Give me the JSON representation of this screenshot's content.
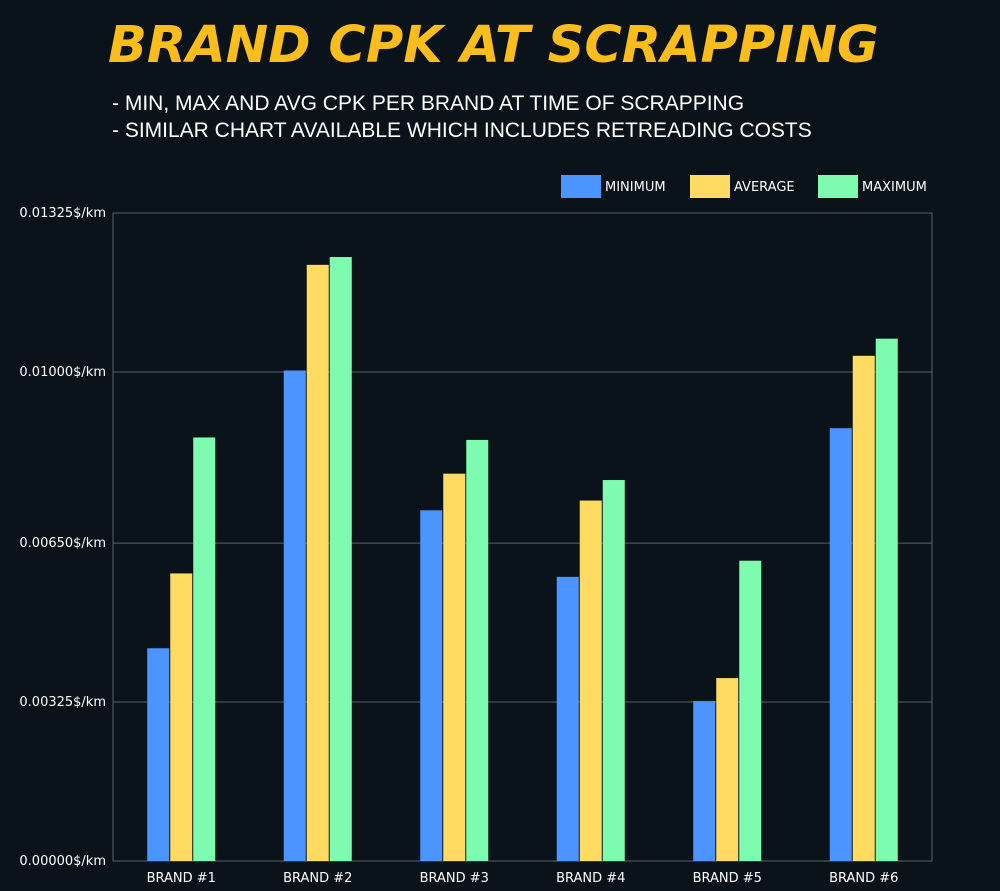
{
  "title": "BRAND CPK AT SCRAPPING",
  "subtitle_lines": [
    "- MIN, MAX AND AVG CPK PER BRAND AT TIME OF SCRAPPING",
    "- SIMILAR CHART AVAILABLE WHICH INCLUDES RETREADING COSTS"
  ],
  "colors": {
    "background": "#0a131a",
    "title": "#fbbd1b",
    "minimum": "#4c94ff",
    "average": "#ffdb61",
    "maximum": "#7dfcb0",
    "grid": "#5a6168"
  },
  "chart_data": {
    "type": "bar",
    "categories": [
      "BRAND #1",
      "BRAND #2",
      "BRAND #3",
      "BRAND #4",
      "BRAND #5",
      "BRAND #6"
    ],
    "series": [
      {
        "name": "MINIMUM",
        "values": [
          0.00435,
          0.01003,
          0.00717,
          0.00581,
          0.00327,
          0.00885
        ]
      },
      {
        "name": "AVERAGE",
        "values": [
          0.00588,
          0.01219,
          0.00792,
          0.00737,
          0.00374,
          0.01033
        ]
      },
      {
        "name": "MAXIMUM",
        "values": [
          0.00866,
          0.01235,
          0.00861,
          0.00779,
          0.00614,
          0.01068
        ]
      }
    ],
    "y_ticks": [
      "0.00000$/km",
      "0.00325$/km",
      "0.00650$/km",
      "0.01000$/km",
      "0.01325$/km"
    ],
    "y_tick_values": [
      0,
      0.00325,
      0.0065,
      0.01,
      0.01325
    ],
    "ylim": [
      0,
      0.01325
    ],
    "grid": true,
    "legend_position": "top-right",
    "xlabel": "",
    "ylabel": ""
  }
}
